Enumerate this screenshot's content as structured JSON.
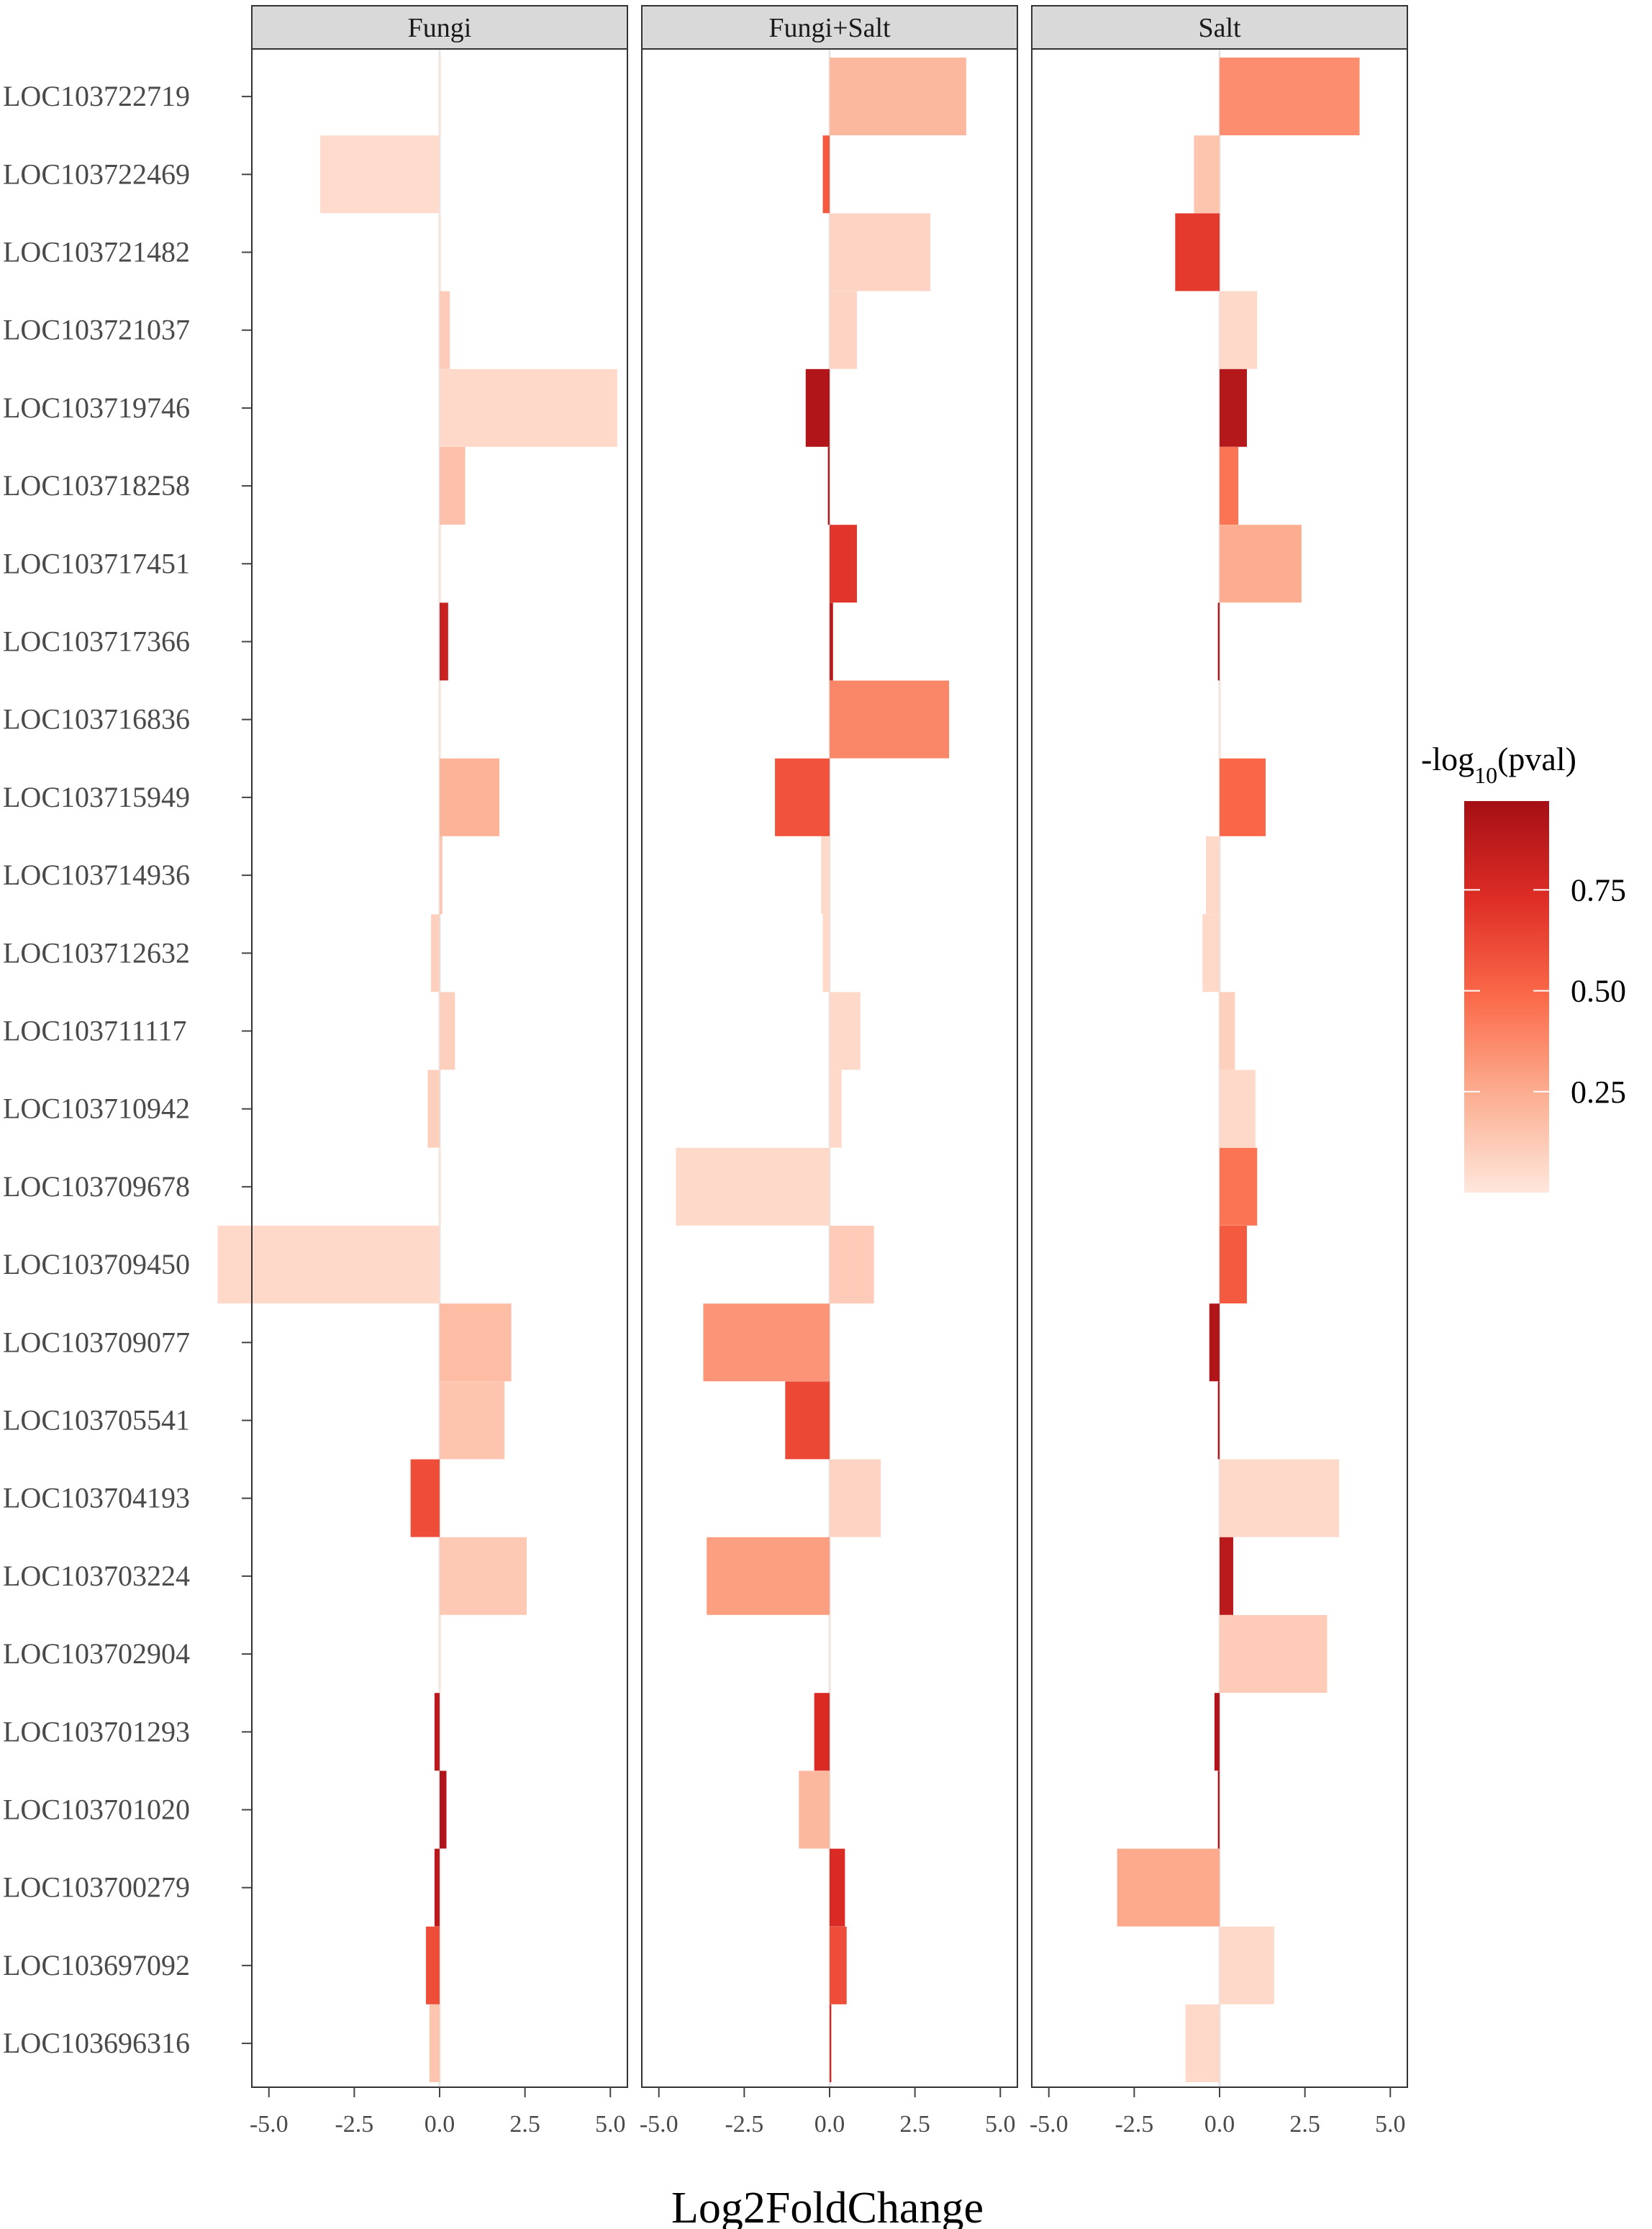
{
  "chart_data": {
    "type": "bar",
    "orientation": "horizontal",
    "facets": [
      "Fungi",
      "Fungi+Salt",
      "Salt"
    ],
    "xlabel": "Log2FoldChange",
    "xlim": [
      -5.5,
      5.5
    ],
    "xticks": [
      -5.0,
      -2.5,
      0.0,
      2.5,
      5.0
    ],
    "xtick_labels": [
      "-5.0",
      "-2.5",
      "0.0",
      "2.5",
      "5.0"
    ],
    "genes": [
      "LOC103722719",
      "LOC103722469",
      "LOC103721482",
      "LOC103721037",
      "LOC103719746",
      "LOC103718258",
      "LOC103717451",
      "LOC103717366",
      "LOC103716836",
      "LOC103715949",
      "LOC103714936",
      "LOC103712632",
      "LOC103711117",
      "LOC103710942",
      "LOC103709678",
      "LOC103709450",
      "LOC103709077",
      "LOC103705541",
      "LOC103704193",
      "LOC103703224",
      "LOC103702904",
      "LOC103701293",
      "LOC103701020",
      "LOC103700279",
      "LOC103697092",
      "LOC103696316"
    ],
    "series": [
      {
        "name": "Fungi",
        "log2fc": [
          0.02,
          -3.5,
          0.02,
          0.3,
          5.2,
          0.75,
          0.02,
          0.25,
          0.02,
          1.75,
          0.08,
          -0.25,
          0.45,
          -0.35,
          0.02,
          -6.5,
          2.1,
          1.9,
          -0.85,
          2.55,
          0.02,
          -0.15,
          0.2,
          -0.15,
          -0.4,
          -0.3
        ],
        "neglog10p": [
          0.0,
          0.05,
          0.0,
          0.12,
          0.06,
          0.16,
          0.0,
          0.82,
          0.0,
          0.22,
          0.15,
          0.1,
          0.1,
          0.1,
          0.0,
          0.06,
          0.18,
          0.15,
          0.6,
          0.13,
          0.0,
          0.88,
          0.92,
          0.88,
          0.6,
          0.15
        ]
      },
      {
        "name": "Fungi+Salt",
        "log2fc": [
          4.0,
          -0.2,
          2.95,
          0.8,
          -0.7,
          -0.05,
          0.8,
          0.1,
          3.5,
          -1.6,
          -0.25,
          -0.2,
          0.9,
          0.35,
          -4.5,
          1.3,
          -3.7,
          -1.3,
          1.5,
          -3.6,
          0.02,
          -0.45,
          -0.9,
          0.45,
          0.5,
          0.05
        ],
        "neglog10p": [
          0.2,
          0.55,
          0.08,
          0.08,
          0.92,
          0.92,
          0.7,
          0.88,
          0.38,
          0.58,
          0.06,
          0.06,
          0.06,
          0.06,
          0.06,
          0.12,
          0.33,
          0.62,
          0.08,
          0.3,
          0.0,
          0.75,
          0.2,
          0.75,
          0.6,
          0.75
        ]
      },
      {
        "name": "Salt",
        "log2fc": [
          4.1,
          -0.75,
          -1.3,
          1.1,
          0.8,
          0.55,
          2.4,
          -0.05,
          0.02,
          1.35,
          -0.4,
          -0.5,
          0.45,
          1.05,
          1.1,
          0.8,
          -0.3,
          -0.05,
          3.5,
          0.4,
          3.15,
          -0.15,
          -0.05,
          -3.0,
          1.6,
          -1.0
        ],
        "neglog10p": [
          0.36,
          0.15,
          0.68,
          0.06,
          0.9,
          0.45,
          0.25,
          0.92,
          0.0,
          0.5,
          0.06,
          0.06,
          0.1,
          0.06,
          0.45,
          0.55,
          0.92,
          0.92,
          0.06,
          0.88,
          0.12,
          0.92,
          0.92,
          0.26,
          0.06,
          0.06
        ]
      }
    ],
    "legend": {
      "title_prefix": "-log",
      "title_subscript": "10",
      "title_suffix": "(pval)",
      "placement": "right",
      "min": 0.0,
      "max": 0.97,
      "ticks": [
        0.25,
        0.5,
        0.75
      ],
      "tick_labels": [
        "0.25",
        "0.50",
        "0.75"
      ],
      "colors": [
        "#fee7dc",
        "#fcae91",
        "#fb6a4a",
        "#de2d26",
        "#a50f15"
      ]
    },
    "grid": false
  }
}
